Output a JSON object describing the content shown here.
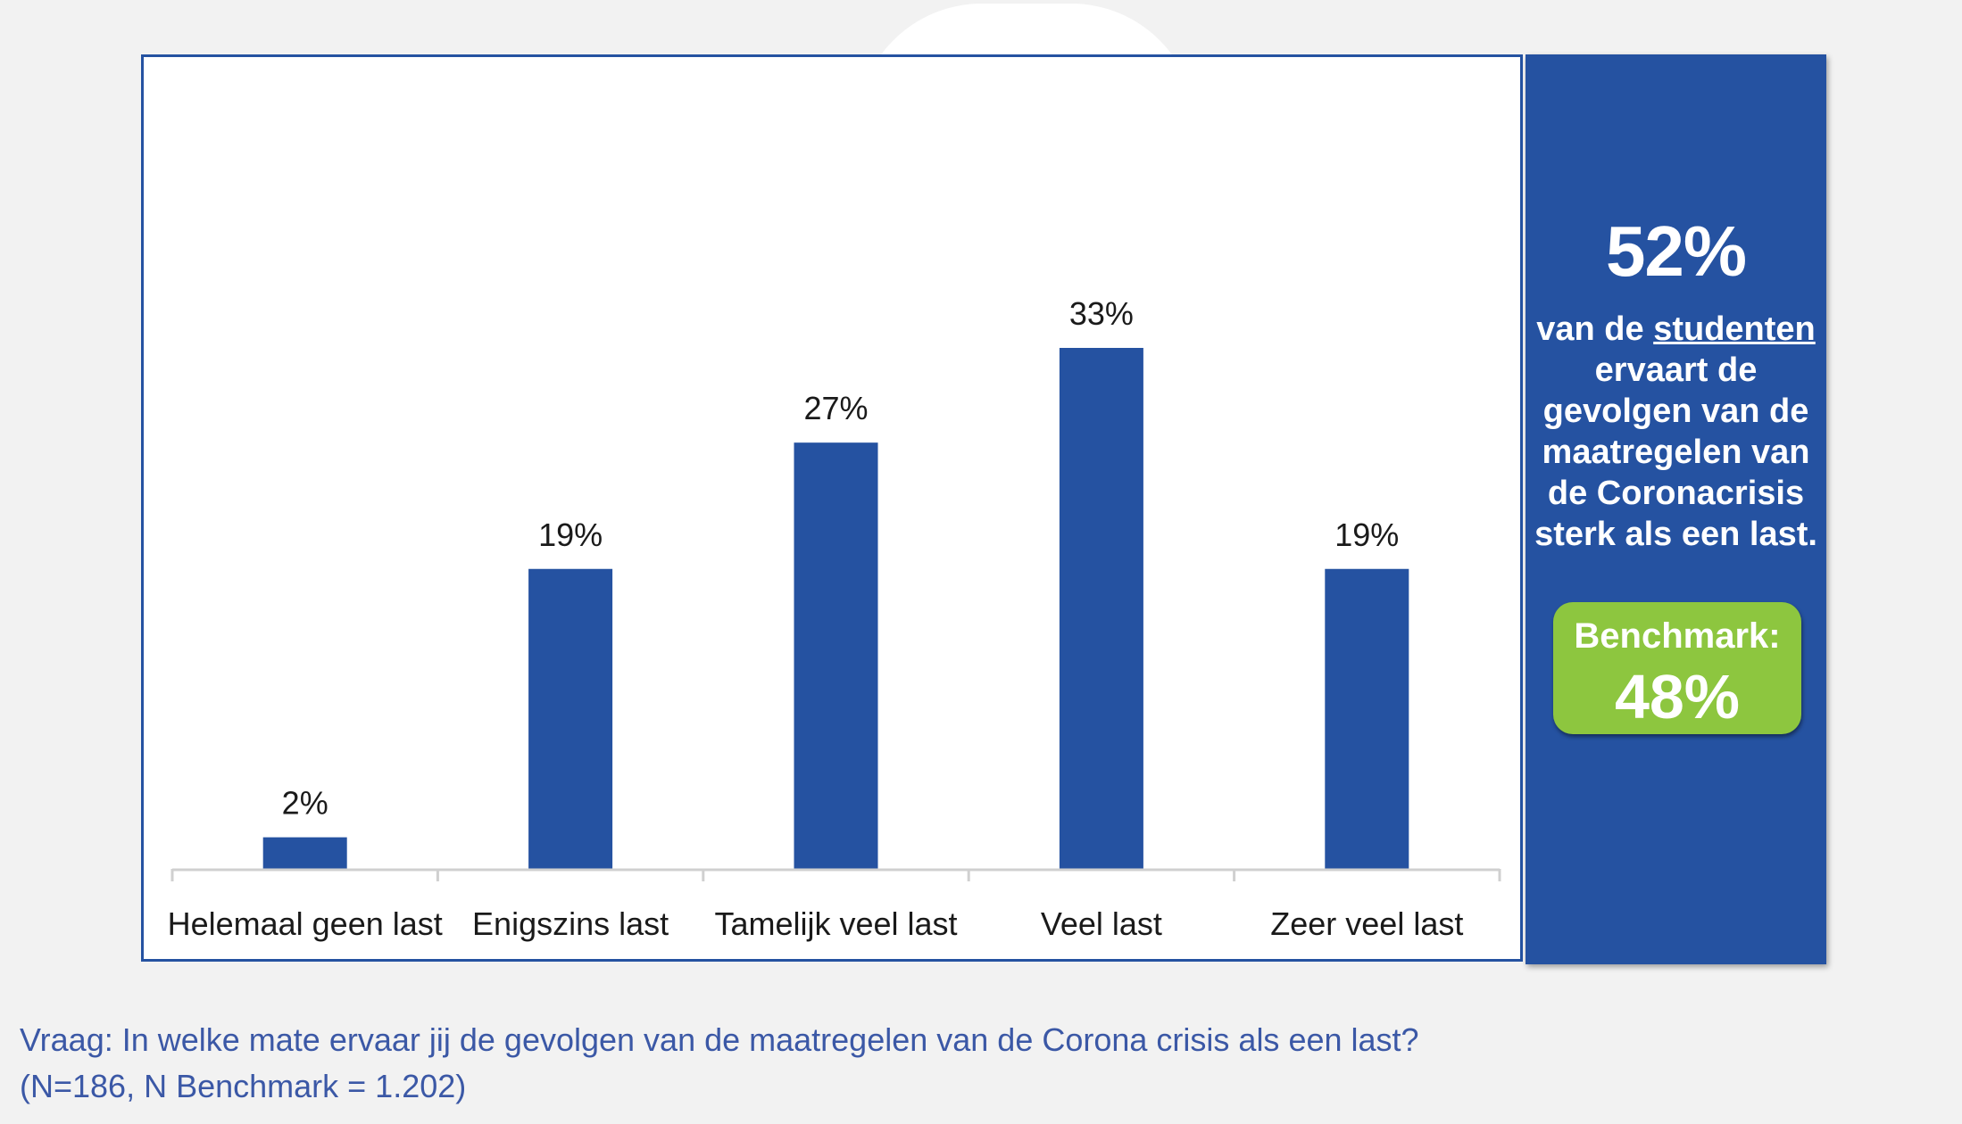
{
  "colors": {
    "bar": "#2552a1",
    "panel_border": "#2552a1",
    "side_panel": "#2552a1",
    "benchmark": "#8dc63f",
    "footnote": "#3b58a6",
    "axis": "#d0d0d0"
  },
  "chart_data": {
    "type": "bar",
    "categories": [
      "Helemaal geen last",
      "Enigszins last",
      "Tamelijk veel last",
      "Veel last",
      "Zeer veel last"
    ],
    "values": [
      2,
      19,
      27,
      33,
      19
    ],
    "data_labels": [
      "2%",
      "19%",
      "27%",
      "33%",
      "19%"
    ],
    "title": "",
    "xlabel": "",
    "ylabel": "",
    "ylim": [
      0,
      35
    ],
    "grid": false,
    "legend": false
  },
  "side_panel": {
    "headline_pct": "52%",
    "text_prefix": "van de ",
    "text_underlined": "studenten",
    "text_rest": "ervaart de gevolgen van de maatregelen van de Coronacrisis sterk als een last.",
    "benchmark_label": "Benchmark:",
    "benchmark_value": "48%"
  },
  "footnote": {
    "line1": "Vraag: In welke mate ervaar jij de gevolgen van de maatregelen van de Corona crisis als een last?",
    "line2": "(N=186, N Benchmark = 1.202)"
  }
}
